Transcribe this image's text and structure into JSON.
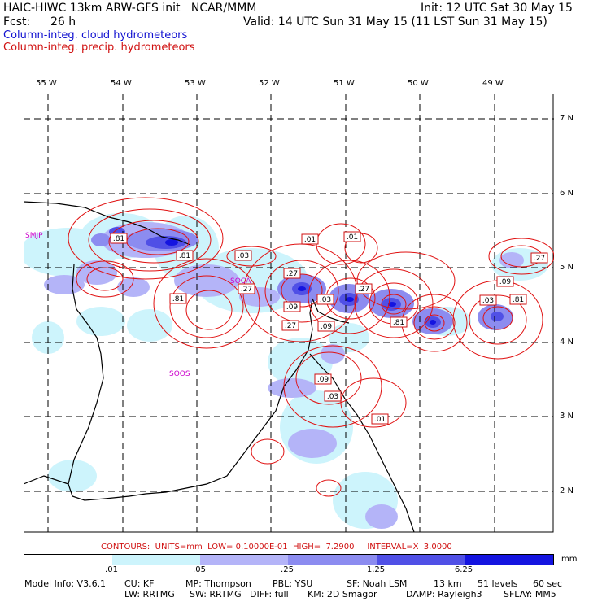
{
  "header": {
    "model_line": "HAIC-HIWC 13km ARW-GFS init   NCAR/MMM",
    "init_line": "Init: 12 UTC Sat 30 May 15",
    "fcst_label": "Fcst:",
    "fcst_value": "26 h",
    "valid_line": "Valid: 14 UTC Sun 31 May 15 (11 LST Sun 31 May 15)",
    "field_blue": "Column-integ. cloud hydrometeors",
    "field_red": "Column-integ. precip. hydrometeors"
  },
  "map": {
    "lon_labels": [
      "55 W",
      "54 W",
      "53 W",
      "52 W",
      "51 W",
      "50 W",
      "49 W"
    ],
    "lat_labels": [
      "7 N",
      "6 N",
      "5 N",
      "4 N",
      "3 N",
      "2 N"
    ],
    "stations": [
      "SMJP",
      "SOCA",
      "SOOS"
    ],
    "contour_labels": [
      ".01",
      ".01",
      ".03",
      ".27",
      ".27",
      ".27",
      ".81",
      ".81",
      ".09",
      ".03",
      ".09",
      ".27",
      ".81",
      ".03",
      ".09",
      ".81",
      ".27",
      ".09",
      ".03",
      ".01",
      ".81"
    ]
  },
  "contours_line": "CONTOURS:  UNITS=mm  LOW= 0.10000E-01  HIGH=  7.2900     INTERVAL=X  3.0000",
  "colorbar": {
    "ticks": [
      ".01",
      ".05",
      ".25",
      "1.25",
      "6.25"
    ],
    "units": "mm",
    "colors": [
      "#ffffff",
      "#cdf4fc",
      "#b4b4f8",
      "#8c8cf0",
      "#5050e6",
      "#1414e0"
    ]
  },
  "footer": {
    "line1": [
      "Model Info: V3.6.1",
      "CU: KF",
      "MP: Thompson",
      "PBL: YSU",
      "SF: Noah LSM",
      "13 km",
      "51 levels",
      "60 sec"
    ],
    "line2": [
      "LW: RRTMG",
      "SW: RRTMG",
      "DIFF: full",
      "KM: 2D Smagor",
      "DAMP: Rayleigh3",
      "SFLAY: MM5"
    ]
  }
}
